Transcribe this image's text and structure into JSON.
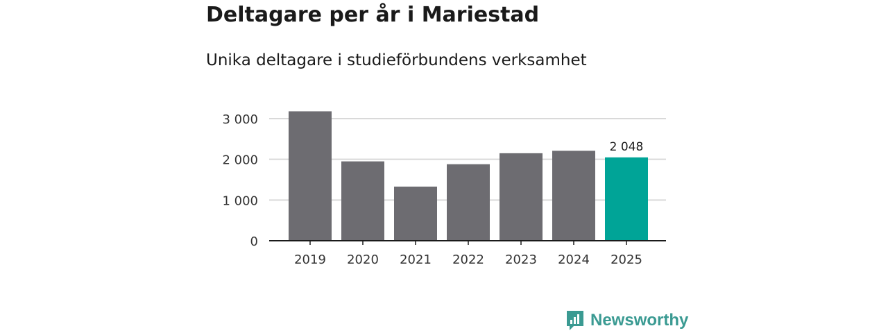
{
  "title": "Deltagare per år i Mariestad",
  "subtitle": "Unika deltagare i studieförbundens verksamhet",
  "brand": {
    "name": "Newsworthy",
    "color": "#3a9a92",
    "icon": "newsworthy-logo-icon"
  },
  "colors": {
    "bar": "#6d6c71",
    "highlight": "#00a497",
    "grid": "#d9d9d9",
    "axis": "#1a1a1a",
    "text": "#333333"
  },
  "chart_data": {
    "type": "bar",
    "title": "Deltagare per år i Mariestad",
    "subtitle": "Unika deltagare i studieförbundens verksamhet",
    "categories": [
      "2019",
      "2020",
      "2021",
      "2022",
      "2023",
      "2024",
      "2025"
    ],
    "values": [
      3180,
      1950,
      1330,
      1880,
      2150,
      2210,
      2048
    ],
    "highlight_index": 6,
    "annotations": [
      {
        "category": "2025",
        "label": "2 048"
      }
    ],
    "ylim": [
      0,
      3000
    ],
    "yticks": [
      0,
      1000,
      2000,
      3000
    ],
    "ytick_labels": [
      "0",
      "1 000",
      "2 000",
      "3 000"
    ],
    "grid": true,
    "xlabel": "",
    "ylabel": ""
  }
}
